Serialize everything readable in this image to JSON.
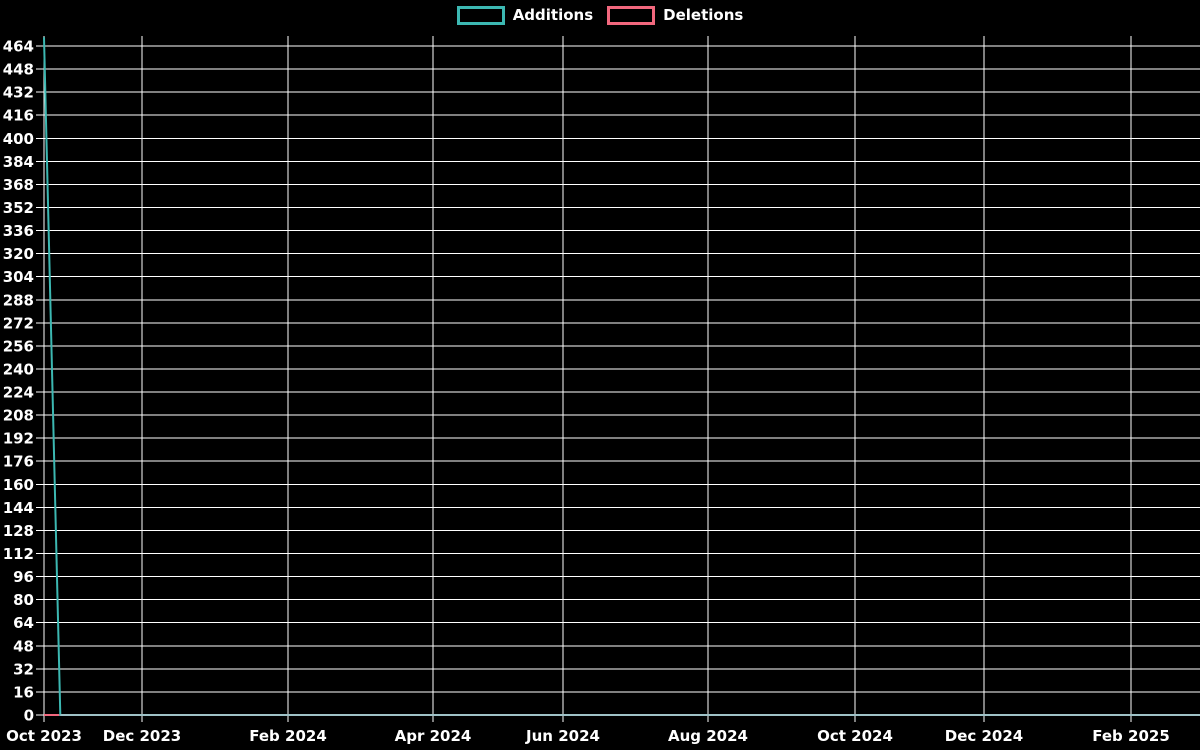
{
  "page": {
    "background": "#000000"
  },
  "legend": {
    "items": [
      {
        "label": "Additions",
        "color": "#3cb8b2"
      },
      {
        "label": "Deletions",
        "color": "#f2687e"
      }
    ]
  },
  "chart_data": {
    "type": "line",
    "title": "",
    "xlabel": "",
    "ylabel": "",
    "background": "#000000",
    "grid": true,
    "gridline_color": "#ffffff",
    "text_color": "#ffffff",
    "legend_position": "top-center",
    "x_axis": {
      "unit": "weeks starting Oct 2023",
      "tick_labels": [
        "Oct 2023",
        "Dec 2023",
        "Feb 2024",
        "Apr 2024",
        "Jun 2024",
        "Aug 2024",
        "Oct 2024",
        "Dec 2024",
        "Feb 2025"
      ]
    },
    "y_axis": {
      "min": 0,
      "max": 464,
      "step": 16,
      "ticks": [
        0,
        16,
        32,
        48,
        64,
        80,
        96,
        112,
        128,
        144,
        160,
        176,
        192,
        208,
        224,
        240,
        256,
        272,
        288,
        304,
        320,
        336,
        352,
        368,
        384,
        400,
        416,
        432,
        448,
        464
      ]
    },
    "series": [
      {
        "name": "Additions",
        "color": "#3cb8b2",
        "points_week_value": [
          [
            0,
            470
          ],
          [
            1,
            0
          ],
          [
            71,
            0
          ]
        ]
      },
      {
        "name": "Deletions",
        "color": "#f2687e",
        "points_week_value": [
          [
            0,
            0
          ],
          [
            71,
            0
          ]
        ]
      }
    ],
    "zero_run_blend_color": "#9fc1c6"
  }
}
